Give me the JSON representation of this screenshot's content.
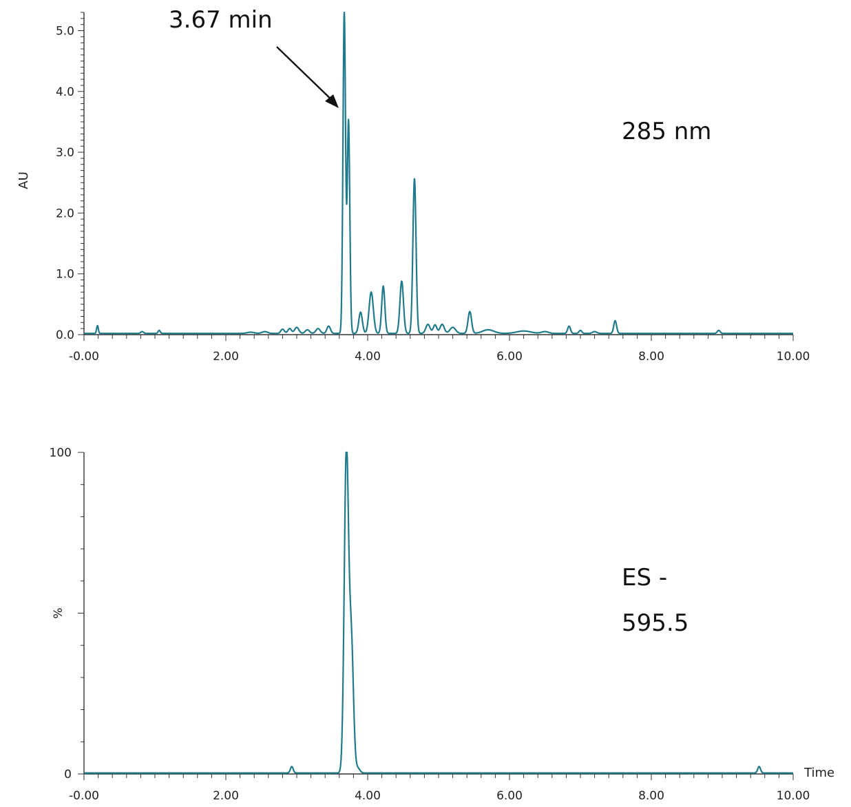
{
  "colors": {
    "trace": "#1f7a8c",
    "axis": "#333333",
    "arrow": "#111111"
  },
  "chart_data": [
    {
      "type": "line",
      "title": "",
      "xlabel": "",
      "ylabel": "AU",
      "xlim": [
        0,
        10
      ],
      "ylim": [
        0,
        5.3
      ],
      "x_ticks": [
        0,
        2,
        4,
        6,
        8,
        10
      ],
      "x_tick_labels": [
        "-0.00",
        "2.00",
        "4.00",
        "6.00",
        "8.00",
        "10.00"
      ],
      "y_ticks": [
        0,
        1,
        2,
        3,
        4,
        5
      ],
      "y_tick_labels": [
        "0.0",
        "1.0",
        "2.0",
        "3.0",
        "4.0",
        "5.0"
      ],
      "grid": false,
      "annotations": [
        {
          "text": "3.67 min",
          "points_to": {
            "x": 3.67,
            "y": 3.7
          }
        },
        {
          "text": "285 nm"
        }
      ],
      "series": [
        {
          "baseline": 0.02,
          "peaks": [
            {
              "x": 0.19,
              "y": 0.13,
              "w": 0.012
            },
            {
              "x": 0.82,
              "y": 0.03,
              "w": 0.02
            },
            {
              "x": 1.06,
              "y": 0.05,
              "w": 0.015
            },
            {
              "x": 2.35,
              "y": 0.02,
              "w": 0.05
            },
            {
              "x": 2.55,
              "y": 0.03,
              "w": 0.04
            },
            {
              "x": 2.8,
              "y": 0.07,
              "w": 0.025
            },
            {
              "x": 2.9,
              "y": 0.08,
              "w": 0.025
            },
            {
              "x": 3.0,
              "y": 0.1,
              "w": 0.03
            },
            {
              "x": 3.15,
              "y": 0.06,
              "w": 0.03
            },
            {
              "x": 3.3,
              "y": 0.08,
              "w": 0.03
            },
            {
              "x": 3.45,
              "y": 0.12,
              "w": 0.025
            },
            {
              "x": 3.67,
              "y": 5.3,
              "w": 0.018
            },
            {
              "x": 3.73,
              "y": 3.5,
              "w": 0.018
            },
            {
              "x": 3.9,
              "y": 0.35,
              "w": 0.025
            },
            {
              "x": 4.05,
              "y": 0.68,
              "w": 0.03
            },
            {
              "x": 4.22,
              "y": 0.78,
              "w": 0.022
            },
            {
              "x": 4.48,
              "y": 0.86,
              "w": 0.025
            },
            {
              "x": 4.66,
              "y": 2.55,
              "w": 0.022
            },
            {
              "x": 4.85,
              "y": 0.15,
              "w": 0.03
            },
            {
              "x": 4.95,
              "y": 0.14,
              "w": 0.025
            },
            {
              "x": 5.05,
              "y": 0.15,
              "w": 0.03
            },
            {
              "x": 5.2,
              "y": 0.1,
              "w": 0.04
            },
            {
              "x": 5.44,
              "y": 0.36,
              "w": 0.025
            },
            {
              "x": 5.7,
              "y": 0.06,
              "w": 0.08
            },
            {
              "x": 6.2,
              "y": 0.04,
              "w": 0.1
            },
            {
              "x": 6.5,
              "y": 0.03,
              "w": 0.05
            },
            {
              "x": 6.84,
              "y": 0.12,
              "w": 0.02
            },
            {
              "x": 7.0,
              "y": 0.05,
              "w": 0.02
            },
            {
              "x": 7.2,
              "y": 0.03,
              "w": 0.03
            },
            {
              "x": 7.49,
              "y": 0.21,
              "w": 0.02
            },
            {
              "x": 8.95,
              "y": 0.05,
              "w": 0.02
            }
          ]
        }
      ]
    },
    {
      "type": "line",
      "title": "",
      "xlabel": "Time",
      "ylabel": "%",
      "xlim": [
        0,
        10
      ],
      "ylim": [
        0,
        100
      ],
      "x_ticks": [
        0,
        2,
        4,
        6,
        8,
        10
      ],
      "x_tick_labels": [
        "-0.00",
        "2.00",
        "4.00",
        "6.00",
        "8.00",
        "10.00"
      ],
      "y_ticks": [
        0,
        50,
        100
      ],
      "y_tick_labels": [
        "0",
        "%",
        "100"
      ],
      "grid": false,
      "annotations": [
        {
          "text": "ES -"
        },
        {
          "text": "595.5"
        }
      ],
      "series": [
        {
          "baseline": 0.3,
          "peaks": [
            {
              "x": 2.93,
              "y": 2.0,
              "w": 0.02
            },
            {
              "x": 3.7,
              "y": 100,
              "w": 0.03
            },
            {
              "x": 3.77,
              "y": 40,
              "w": 0.03
            },
            {
              "x": 3.86,
              "y": 1.5,
              "w": 0.03
            },
            {
              "x": 9.52,
              "y": 2.0,
              "w": 0.02
            }
          ]
        }
      ]
    }
  ]
}
